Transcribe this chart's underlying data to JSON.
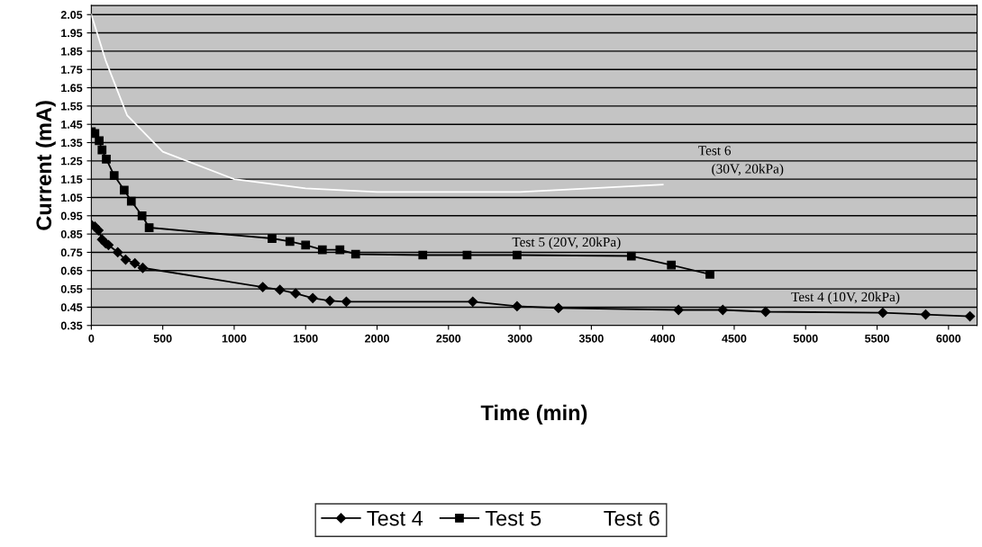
{
  "chart_data": {
    "type": "line",
    "xlabel": "Time (min)",
    "ylabel": "Current (mA)",
    "xlim": [
      0,
      6200
    ],
    "xticks": [
      0,
      500,
      1000,
      1500,
      2000,
      2500,
      3000,
      3500,
      4000,
      4500,
      5000,
      5500,
      6000
    ],
    "ylim": [
      0.35,
      2.1
    ],
    "yticks": [
      0.35,
      0.45,
      0.55,
      0.65,
      0.75,
      0.85,
      0.95,
      1.05,
      1.15,
      1.25,
      1.35,
      1.45,
      1.55,
      1.65,
      1.75,
      1.85,
      1.95,
      2.05
    ],
    "grid": "y",
    "legend": "bottom",
    "series": [
      {
        "name": "Test 4",
        "color": "#000000",
        "marker": "diamond",
        "x": [
          0,
          25,
          50,
          75,
          100,
          120,
          185,
          240,
          305,
          360,
          1200,
          1320,
          1430,
          1550,
          1670,
          1785,
          2670,
          2980,
          3270,
          4110,
          4420,
          4720,
          5540,
          5840,
          6150
        ],
        "values": [
          0.9,
          0.89,
          0.87,
          0.82,
          0.8,
          0.79,
          0.75,
          0.71,
          0.69,
          0.665,
          0.56,
          0.545,
          0.525,
          0.5,
          0.485,
          0.48,
          0.48,
          0.455,
          0.445,
          0.435,
          0.435,
          0.425,
          0.42,
          0.41,
          0.4
        ]
      },
      {
        "name": "Test 5",
        "color": "#000000",
        "marker": "square",
        "x": [
          0,
          25,
          55,
          75,
          105,
          160,
          230,
          280,
          355,
          405,
          1265,
          1390,
          1500,
          1617,
          1740,
          1850,
          2320,
          2630,
          2980,
          3780,
          4060,
          4330
        ],
        "values": [
          1.41,
          1.4,
          1.36,
          1.31,
          1.26,
          1.17,
          1.09,
          1.03,
          0.95,
          0.885,
          0.826,
          0.81,
          0.79,
          0.764,
          0.764,
          0.74,
          0.735,
          0.735,
          0.735,
          0.73,
          0.68,
          0.63
        ]
      },
      {
        "name": "Test 6",
        "color": "#ffffff",
        "marker": "none",
        "x": [
          0,
          100,
          250,
          500,
          1000,
          1500,
          2000,
          3000,
          4000
        ],
        "values": [
          2.05,
          1.8,
          1.5,
          1.3,
          1.15,
          1.1,
          1.08,
          1.08,
          1.12
        ]
      }
    ],
    "annotations": [
      "Test 6",
      "(30V, 20kPa)",
      "Test 5 (20V, 20kPa)",
      "Test 4 (10V, 20kPa)"
    ]
  }
}
